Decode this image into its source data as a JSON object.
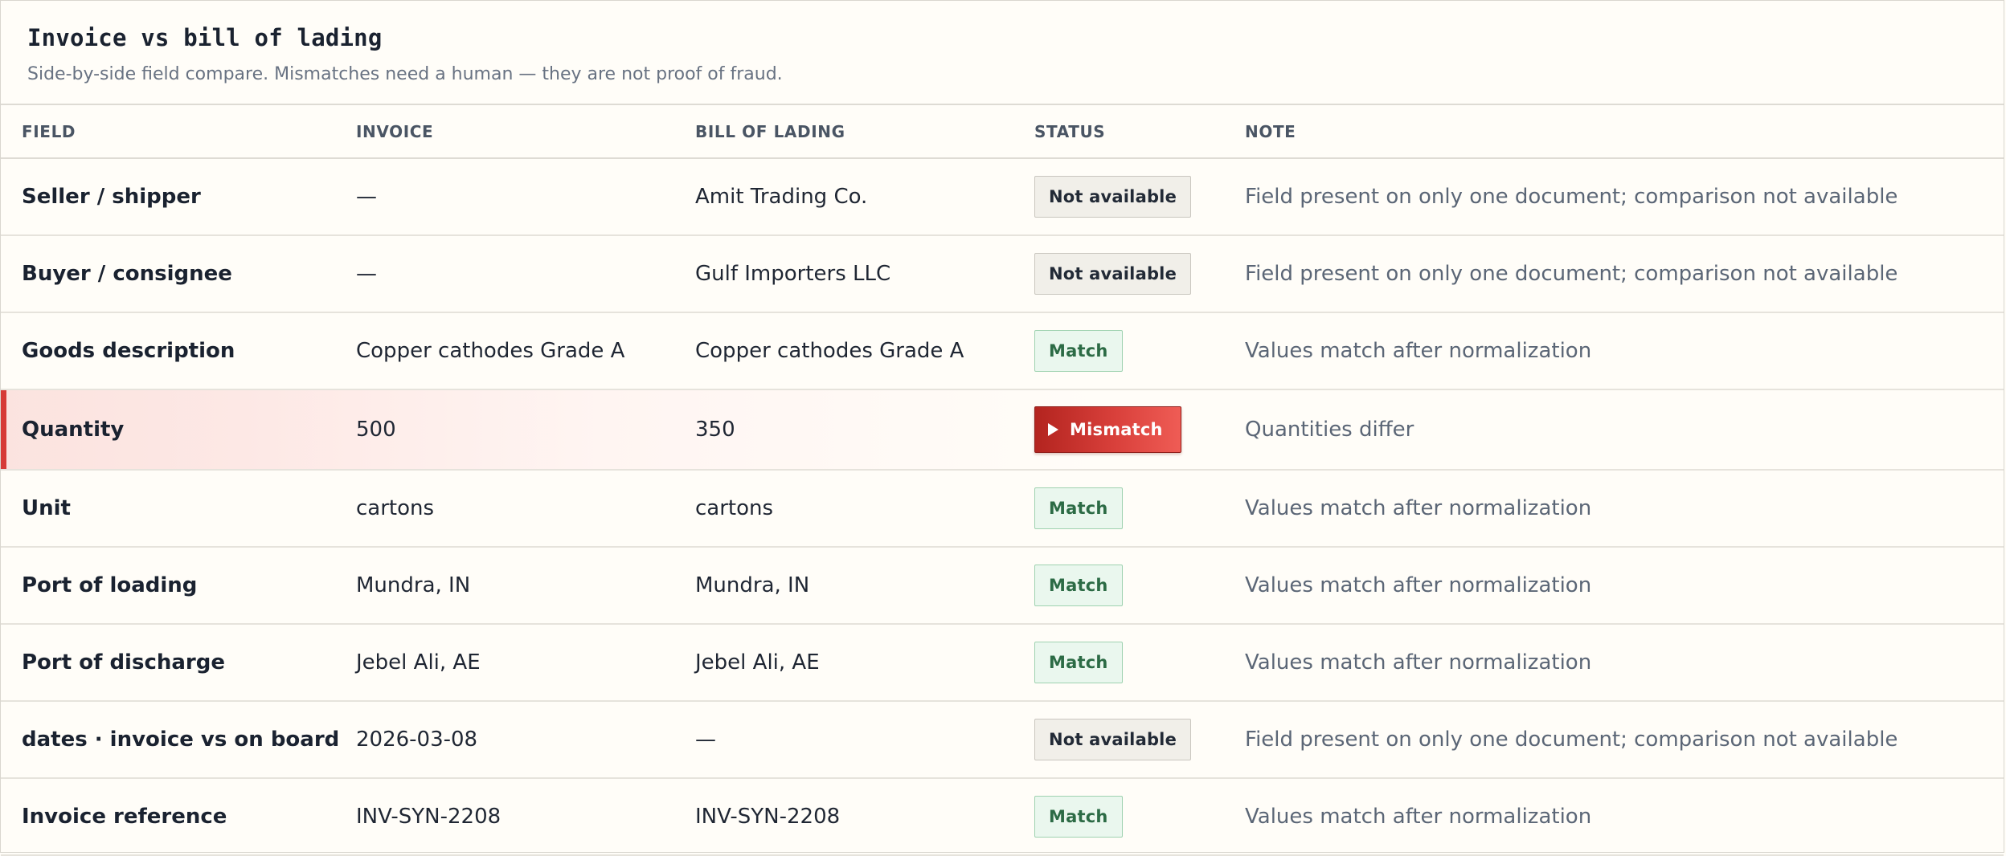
{
  "header": {
    "title": "Invoice vs bill of lading",
    "subtitle": "Side-by-side field compare. Mismatches need a human — they are not proof of fraud."
  },
  "columns": {
    "field": "FIELD",
    "invoice": "INVOICE",
    "bol": "BILL OF LADING",
    "status": "STATUS",
    "note": "NOTE"
  },
  "rows": [
    {
      "field": "Seller / shipper",
      "invoice": "—",
      "bol": "Amit Trading Co.",
      "status": "Not available",
      "status_type": "na",
      "note": "Field present on only one document; comparison not available"
    },
    {
      "field": "Buyer / consignee",
      "invoice": "—",
      "bol": "Gulf Importers LLC",
      "status": "Not available",
      "status_type": "na",
      "note": "Field present on only one document; comparison not available"
    },
    {
      "field": "Goods description",
      "invoice": "Copper cathodes Grade A",
      "bol": "Copper cathodes Grade A",
      "status": "Match",
      "status_type": "match",
      "note": "Values match after normalization"
    },
    {
      "field": "Quantity",
      "invoice": "500",
      "bol": "350",
      "status": "Mismatch",
      "status_type": "mismatch",
      "note": "Quantities differ"
    },
    {
      "field": "Unit",
      "invoice": "cartons",
      "bol": "cartons",
      "status": "Match",
      "status_type": "match",
      "note": "Values match after normalization"
    },
    {
      "field": "Port of loading",
      "invoice": "Mundra, IN",
      "bol": "Mundra, IN",
      "status": "Match",
      "status_type": "match",
      "note": "Values match after normalization"
    },
    {
      "field": "Port of discharge",
      "invoice": "Jebel Ali, AE",
      "bol": "Jebel Ali, AE",
      "status": "Match",
      "status_type": "match",
      "note": "Values match after normalization"
    },
    {
      "field": "dates · invoice vs on board",
      "invoice": "2026-03-08",
      "bol": "—",
      "status": "Not available",
      "status_type": "na",
      "note": "Field present on only one document; comparison not available"
    },
    {
      "field": "Invoice reference",
      "invoice": "INV-SYN-2208",
      "bol": "INV-SYN-2208",
      "status": "Match",
      "status_type": "match",
      "note": "Values match after normalization"
    }
  ],
  "icons": {
    "mismatch_badge": "play-triangle-icon"
  },
  "colors": {
    "mismatch_accent": "#d63b37",
    "match_text": "#2c6b45",
    "match_bg": "#eaf7ee",
    "na_bg": "#f1efe9"
  }
}
